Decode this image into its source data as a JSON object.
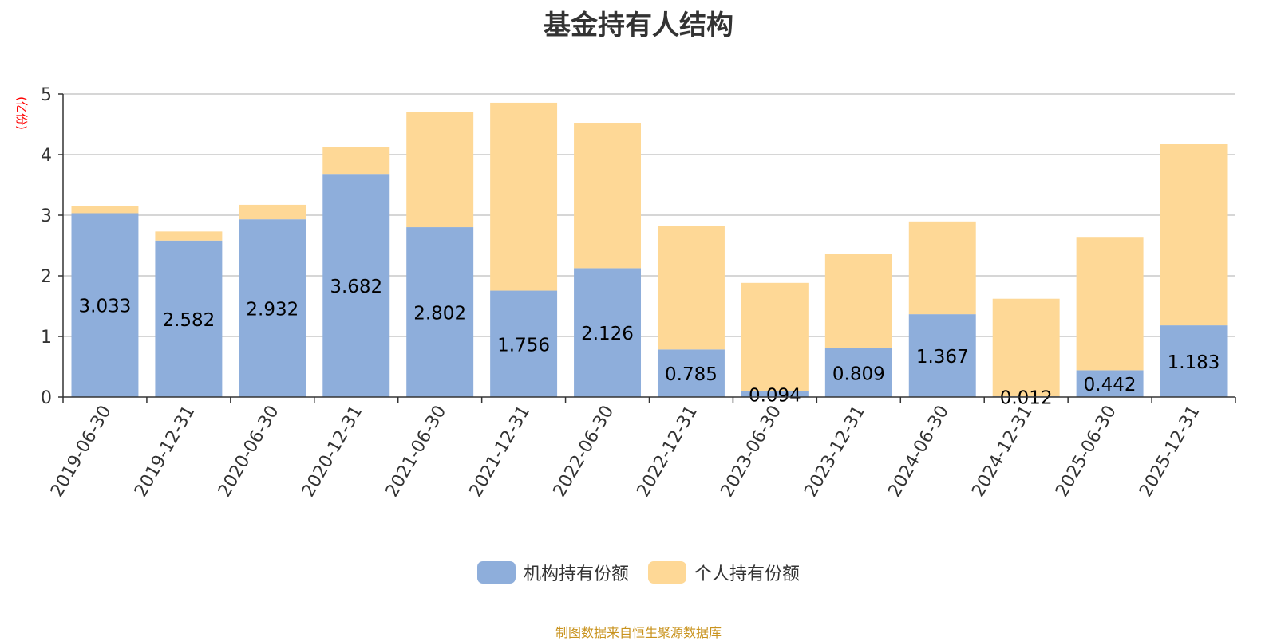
{
  "title": "基金持有人结构",
  "source_note": "制图数据来自恒生聚源数据库",
  "colors": {
    "institutional": "#8eaedb",
    "individual": "#fed896",
    "unit_label": "#ff0000"
  },
  "chart_data": {
    "type": "bar",
    "stacked": true,
    "title": "基金持有人结构",
    "ylabel": "(亿份)",
    "ylim": [
      0,
      5
    ],
    "yticks": [
      "0",
      "1",
      "2",
      "3",
      "4",
      "5"
    ],
    "grid": true,
    "legend_position": "bottom-center",
    "categories": [
      "2019-06-30",
      "2019-12-31",
      "2020-06-30",
      "2020-12-31",
      "2021-06-30",
      "2021-12-31",
      "2022-06-30",
      "2022-12-31",
      "2023-06-30",
      "2023-12-31",
      "2024-06-30",
      "2024-12-31",
      "2025-06-30",
      "2025-12-31"
    ],
    "series": [
      {
        "name": "机构持有份额",
        "values": [
          3.033,
          2.582,
          2.932,
          3.682,
          2.802,
          1.756,
          2.126,
          0.785,
          0.094,
          0.809,
          1.367,
          0.012,
          0.442,
          1.183
        ],
        "labels": [
          "3.033",
          "2.582",
          "2.932",
          "3.682",
          "2.802",
          "1.756",
          "2.126",
          "0.785",
          "0.094",
          "0.809",
          "1.367",
          "0.012",
          "0.442",
          "1.183"
        ]
      },
      {
        "name": "个人持有份额",
        "values": [
          0.12,
          0.15,
          0.24,
          0.44,
          1.9,
          3.1,
          2.4,
          2.04,
          1.79,
          1.55,
          1.53,
          1.61,
          2.2,
          2.99
        ]
      }
    ]
  }
}
